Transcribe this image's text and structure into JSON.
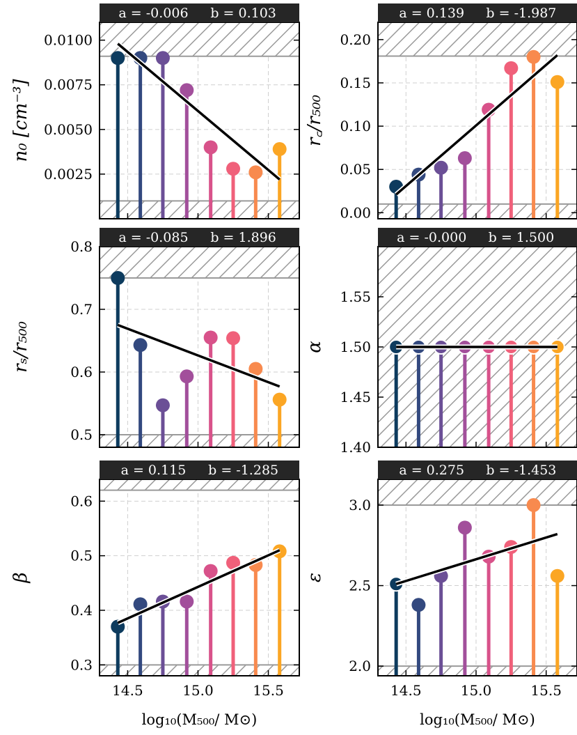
{
  "colors": [
    "#0d3b5e",
    "#33497f",
    "#6b4f96",
    "#a24f9b",
    "#d8528a",
    "#f0607a",
    "#f88a4e",
    "#fba624"
  ],
  "hatch_color": "#9a9a9a",
  "fit_color": "#000000",
  "banner_color": "#262626",
  "chart_data": [
    {
      "type": "scatter",
      "panel": "n0",
      "x": [
        14.43,
        14.59,
        14.75,
        14.92,
        15.09,
        15.25,
        15.41,
        15.58
      ],
      "y": [
        0.009,
        0.009,
        0.009,
        0.0072,
        0.004,
        0.0028,
        0.0026,
        0.0039
      ],
      "ylim": [
        0,
        0.011
      ],
      "yticks": [
        0.0025,
        0.005,
        0.0075,
        0.01
      ],
      "ytick_labels": [
        "0.0025",
        "0.0050",
        "0.0075",
        "0.0100"
      ],
      "ylabel": "n₀ [cm⁻³]",
      "hatch_above": 0.0091,
      "hatch_below": 0.001,
      "fit": {
        "y_start": 0.0098,
        "y_end": 0.0022
      },
      "banner": {
        "a": "-0.006",
        "b": "0.103"
      },
      "hollow_first": false
    },
    {
      "type": "scatter",
      "panel": "rc",
      "x": [
        14.43,
        14.59,
        14.75,
        14.92,
        15.09,
        15.25,
        15.41,
        15.58
      ],
      "y": [
        0.03,
        0.044,
        0.052,
        0.063,
        0.119,
        0.167,
        0.18,
        0.151
      ],
      "ylim": [
        -0.007,
        0.22
      ],
      "yticks": [
        0.0,
        0.05,
        0.1,
        0.15,
        0.2
      ],
      "ytick_labels": [
        "0.00",
        "0.05",
        "0.10",
        "0.15",
        "0.20"
      ],
      "ylabel": "r꜀/r₅₀₀",
      "hatch_above": 0.181,
      "hatch_below": 0.01,
      "fit": {
        "y_start": 0.021,
        "y_end": 0.182
      },
      "banner": {
        "a": "0.139",
        "b": "-1.987"
      },
      "hollow_first": false
    },
    {
      "type": "scatter",
      "panel": "rs",
      "x": [
        14.43,
        14.59,
        14.75,
        14.92,
        15.09,
        15.25,
        15.41,
        15.58
      ],
      "y": [
        0.75,
        0.643,
        0.547,
        0.593,
        0.655,
        0.654,
        0.605,
        0.556
      ],
      "ylim": [
        0.48,
        0.8
      ],
      "yticks": [
        0.5,
        0.6,
        0.7,
        0.8
      ],
      "ytick_labels": [
        "0.5",
        "0.6",
        "0.7",
        "0.8"
      ],
      "ylabel": "rₛ/r₅₀₀",
      "hatch_above": 0.75,
      "hatch_below": 0.5,
      "fit": {
        "y_start": 0.675,
        "y_end": 0.577
      },
      "banner": {
        "a": "-0.085",
        "b": "1.896"
      },
      "hollow_first": false
    },
    {
      "type": "scatter",
      "panel": "alpha",
      "x": [
        14.43,
        14.59,
        14.75,
        14.92,
        15.09,
        15.25,
        15.41,
        15.58
      ],
      "y": [
        1.5,
        1.5,
        1.5,
        1.5,
        1.5,
        1.5,
        1.5,
        1.5
      ],
      "ylim": [
        1.4,
        1.6
      ],
      "yticks": [
        1.4,
        1.45,
        1.5,
        1.55
      ],
      "ytick_labels": [
        "1.40",
        "1.45",
        "1.50",
        "1.55"
      ],
      "ylabel": "α",
      "hatch_full": true,
      "fit": {
        "y_start": 1.5,
        "y_end": 1.5
      },
      "banner": {
        "a": "-0.000",
        "b": "1.500"
      },
      "hollow_first": true
    },
    {
      "type": "scatter",
      "panel": "beta",
      "x": [
        14.43,
        14.59,
        14.75,
        14.92,
        15.09,
        15.25,
        15.41,
        15.58
      ],
      "y": [
        0.37,
        0.411,
        0.416,
        0.416,
        0.472,
        0.487,
        0.483,
        0.508
      ],
      "ylim": [
        0.28,
        0.64
      ],
      "yticks": [
        0.3,
        0.4,
        0.5,
        0.6
      ],
      "ytick_labels": [
        "0.3",
        "0.4",
        "0.5",
        "0.6"
      ],
      "ylabel": "β",
      "hatch_above": 0.62,
      "hatch_below": 0.3,
      "fit": {
        "y_start": 0.377,
        "y_end": 0.51
      },
      "banner": {
        "a": "0.115",
        "b": "-1.285"
      },
      "hollow_first": false
    },
    {
      "type": "scatter",
      "panel": "epsilon",
      "x": [
        14.43,
        14.59,
        14.75,
        14.92,
        15.09,
        15.25,
        15.41,
        15.58
      ],
      "y": [
        2.51,
        2.38,
        2.56,
        2.86,
        2.68,
        2.74,
        3.0,
        2.56
      ],
      "ylim": [
        1.94,
        3.16
      ],
      "yticks": [
        2.0,
        2.5,
        3.0
      ],
      "ytick_labels": [
        "2.0",
        "2.5",
        "3.0"
      ],
      "ylabel": "ε",
      "hatch_above": 3.0,
      "hatch_below": 2.0,
      "fit": {
        "y_start": 2.51,
        "y_end": 2.82
      },
      "banner": {
        "a": "0.275",
        "b": "-1.453"
      },
      "hollow_first": true
    }
  ],
  "shared": {
    "xlim": [
      14.3,
      15.72
    ],
    "xticks": [
      14.5,
      15.0,
      15.5
    ],
    "xtick_labels": [
      "14.5",
      "15.0",
      "15.5"
    ],
    "xlabel": "log₁₀(M₅₀₀/ M⊙)",
    "banner_a_prefix": "a = ",
    "banner_b_prefix": "b = "
  }
}
